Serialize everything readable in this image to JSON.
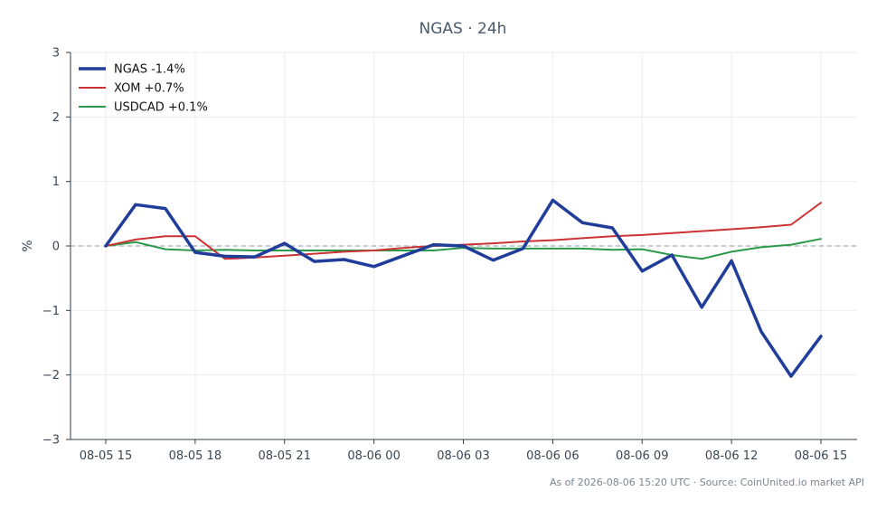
{
  "chart_data": {
    "type": "line",
    "title": "NGAS · 24h",
    "xlabel": "",
    "ylabel": "%",
    "ylim": [
      -3,
      3
    ],
    "yticks": [
      3,
      2,
      1,
      0,
      -1,
      -2,
      -3
    ],
    "ytick_labels": [
      "3",
      "2",
      "1",
      "0",
      "−1",
      "−2",
      "−3"
    ],
    "x": [
      "08-05 15",
      "08-05 16",
      "08-05 17",
      "08-05 18",
      "08-05 19",
      "08-05 20",
      "08-05 21",
      "08-05 22",
      "08-05 23",
      "08-06 00",
      "08-06 01",
      "08-06 02",
      "08-06 03",
      "08-06 04",
      "08-06 05",
      "08-06 06",
      "08-06 07",
      "08-06 08",
      "08-06 09",
      "08-06 10",
      "08-06 11",
      "08-06 12",
      "08-06 13",
      "08-06 14",
      "08-06 15"
    ],
    "xtick_labels": [
      "08-05 15",
      "08-05 18",
      "08-05 21",
      "08-06 00",
      "08-06 03",
      "08-06 06",
      "08-06 09",
      "08-06 12",
      "08-06 15"
    ],
    "grid": true,
    "zero_line": true,
    "legend": "top-left",
    "series": [
      {
        "name": "NGAS -1.4%",
        "color": "#1f3d99",
        "values": [
          0.0,
          0.64,
          0.58,
          -0.1,
          -0.16,
          -0.17,
          0.04,
          -0.24,
          -0.21,
          -0.32,
          -0.15,
          0.02,
          0.0,
          -0.22,
          -0.04,
          0.71,
          0.36,
          0.28,
          -0.39,
          -0.14,
          -0.95,
          -0.23,
          -1.33,
          -2.02,
          -1.4
        ]
      },
      {
        "name": "XOM +0.7%",
        "color": "#cc3333",
        "values": [
          0.0,
          0.1,
          0.15,
          0.15,
          -0.2,
          -0.18,
          -0.15,
          -0.12,
          -0.09,
          -0.07,
          -0.03,
          0.0,
          0.02,
          0.04,
          0.07,
          0.09,
          0.12,
          0.15,
          0.17,
          0.2,
          0.23,
          0.26,
          0.29,
          0.33,
          0.67
        ]
      },
      {
        "name": "USDCAD +0.1%",
        "color": "#2a9a4a",
        "values": [
          0.0,
          0.06,
          -0.05,
          -0.07,
          -0.06,
          -0.07,
          -0.07,
          -0.07,
          -0.07,
          -0.07,
          -0.07,
          -0.07,
          -0.03,
          -0.04,
          -0.04,
          -0.04,
          -0.04,
          -0.06,
          -0.05,
          -0.14,
          -0.2,
          -0.09,
          -0.02,
          0.02,
          0.11
        ]
      }
    ]
  },
  "footer": "As of 2026-08-06 15:20 UTC · Source: CoinUnited.io market API"
}
